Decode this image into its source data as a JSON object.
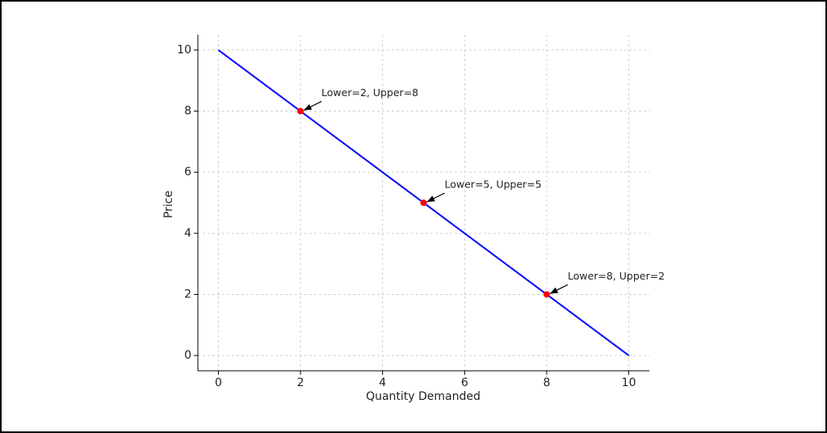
{
  "chart_data": {
    "type": "line",
    "xlabel": "Quantity Demanded",
    "ylabel": "Price",
    "series": [
      {
        "type": "line",
        "color": "#0000ff",
        "x": [
          0,
          10
        ],
        "values": [
          10,
          0
        ]
      },
      {
        "type": "scatter",
        "color": "#ff0000",
        "x": [
          2,
          5,
          8
        ],
        "values": [
          8,
          5,
          2
        ],
        "annotations": [
          "Lower=2, Upper=8",
          "Lower=5, Upper=5",
          "Lower=8, Upper=2"
        ]
      }
    ],
    "xlim": [
      -0.5,
      10.5
    ],
    "ylim": [
      -0.5,
      10.5
    ],
    "xticks": [
      0,
      2,
      4,
      6,
      8,
      10
    ],
    "yticks": [
      0,
      2,
      4,
      6,
      8,
      10
    ],
    "grid": true
  }
}
